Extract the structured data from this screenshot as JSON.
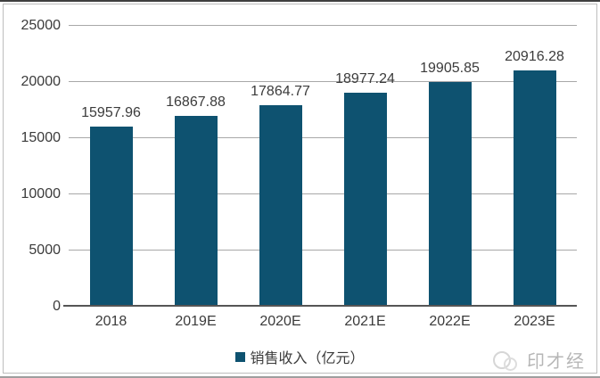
{
  "chart_data": {
    "type": "bar",
    "title": "",
    "categories": [
      "2018",
      "2019E",
      "2020E",
      "2021E",
      "2022E",
      "2023E"
    ],
    "values": [
      15957.96,
      16867.88,
      17864.77,
      18977.24,
      19905.85,
      20916.28
    ],
    "value_labels": [
      "15957.96",
      "16867.88",
      "17864.77",
      "18977.24",
      "19905.85",
      "20916.28"
    ],
    "ylim": [
      0,
      25000
    ],
    "ytick_labels": [
      "25000",
      "20000",
      "15000",
      "10000",
      "5000",
      "0"
    ],
    "grid": true,
    "legend_position": "bottom",
    "legend_label": "销售收入（亿元）",
    "bar_color": "#0e5270",
    "xlabel": "",
    "ylabel": ""
  },
  "watermark": {
    "text": "印才经"
  }
}
